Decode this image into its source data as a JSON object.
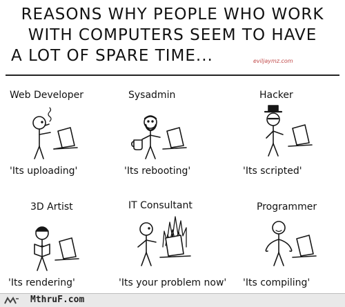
{
  "title": {
    "line1": "REASONS WHY PEOPLE WHO WORK",
    "line2": "WITH COMPUTERS SEEM TO HAVE",
    "line3": "A LOT OF SPARE TIME..."
  },
  "credit": "eviljaymz.com",
  "panels": [
    {
      "role": "Web Developer",
      "caption": "'Its uploading'"
    },
    {
      "role": "Sysadmin",
      "caption": "'Its rebooting'"
    },
    {
      "role": "Hacker",
      "caption": "'Its scripted'"
    },
    {
      "role": "3D Artist",
      "caption": "'Its rendering'"
    },
    {
      "role": "IT Consultant",
      "caption": "'Its your problem now'"
    },
    {
      "role": "Programmer",
      "caption": "'Its compiling'"
    }
  ],
  "footer": {
    "site": "MthruF.com"
  },
  "colors": {
    "ink": "#161616",
    "credit": "#c04848",
    "fire": "#555555"
  }
}
